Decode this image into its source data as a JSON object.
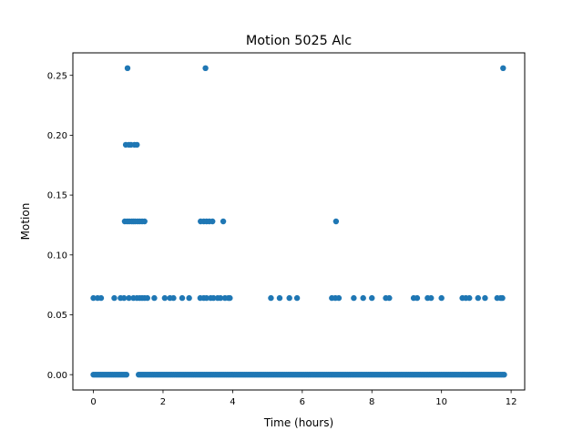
{
  "chart_data": {
    "type": "scatter",
    "title": "Motion 5025 Alc",
    "xlabel": "Time (hours)",
    "ylabel": "Motion",
    "xlim": [
      -0.59,
      12.39
    ],
    "ylim": [
      -0.0128,
      0.2688
    ],
    "xticks": [
      0,
      2,
      4,
      6,
      8,
      10,
      12
    ],
    "xtick_labels": [
      "0",
      "2",
      "4",
      "6",
      "8",
      "10",
      "12"
    ],
    "yticks": [
      0.0,
      0.05,
      0.1,
      0.15,
      0.2,
      0.25
    ],
    "ytick_labels": [
      "0.00",
      "0.05",
      "0.10",
      "0.15",
      "0.20",
      "0.25"
    ],
    "grid": false,
    "marker_color": "#1f77b4",
    "series": [
      {
        "points": [
          [
            0.98,
            0.256
          ],
          [
            3.22,
            0.256
          ],
          [
            11.77,
            0.256
          ],
          [
            0.93,
            0.192
          ],
          [
            1.02,
            0.192
          ],
          [
            1.08,
            0.192
          ],
          [
            1.18,
            0.192
          ],
          [
            1.25,
            0.192
          ],
          [
            0.9,
            0.128
          ],
          [
            0.97,
            0.128
          ],
          [
            1.03,
            0.128
          ],
          [
            1.1,
            0.128
          ],
          [
            1.15,
            0.128
          ],
          [
            1.2,
            0.128
          ],
          [
            1.27,
            0.128
          ],
          [
            1.33,
            0.128
          ],
          [
            1.4,
            0.128
          ],
          [
            1.47,
            0.128
          ],
          [
            3.08,
            0.128
          ],
          [
            3.17,
            0.128
          ],
          [
            3.25,
            0.128
          ],
          [
            3.33,
            0.128
          ],
          [
            3.42,
            0.128
          ],
          [
            3.73,
            0.128
          ],
          [
            6.97,
            0.128
          ],
          [
            0.0,
            0.064
          ],
          [
            0.12,
            0.064
          ],
          [
            0.22,
            0.064
          ],
          [
            0.6,
            0.064
          ],
          [
            0.78,
            0.064
          ],
          [
            0.88,
            0.064
          ],
          [
            1.02,
            0.064
          ],
          [
            1.15,
            0.064
          ],
          [
            1.25,
            0.064
          ],
          [
            1.33,
            0.064
          ],
          [
            1.4,
            0.064
          ],
          [
            1.47,
            0.064
          ],
          [
            1.55,
            0.064
          ],
          [
            1.75,
            0.064
          ],
          [
            2.05,
            0.064
          ],
          [
            2.2,
            0.064
          ],
          [
            2.3,
            0.064
          ],
          [
            2.55,
            0.064
          ],
          [
            2.75,
            0.064
          ],
          [
            3.07,
            0.064
          ],
          [
            3.17,
            0.064
          ],
          [
            3.25,
            0.064
          ],
          [
            3.37,
            0.064
          ],
          [
            3.45,
            0.064
          ],
          [
            3.57,
            0.064
          ],
          [
            3.65,
            0.064
          ],
          [
            3.78,
            0.064
          ],
          [
            3.88,
            0.064
          ],
          [
            3.92,
            0.064
          ],
          [
            5.1,
            0.064
          ],
          [
            5.35,
            0.064
          ],
          [
            5.63,
            0.064
          ],
          [
            5.85,
            0.064
          ],
          [
            6.85,
            0.064
          ],
          [
            6.95,
            0.064
          ],
          [
            7.05,
            0.064
          ],
          [
            7.48,
            0.064
          ],
          [
            7.75,
            0.064
          ],
          [
            8.0,
            0.064
          ],
          [
            8.4,
            0.064
          ],
          [
            8.5,
            0.064
          ],
          [
            9.2,
            0.064
          ],
          [
            9.3,
            0.064
          ],
          [
            9.6,
            0.064
          ],
          [
            9.7,
            0.064
          ],
          [
            10.0,
            0.064
          ],
          [
            10.6,
            0.064
          ],
          [
            10.7,
            0.064
          ],
          [
            10.8,
            0.064
          ],
          [
            11.05,
            0.064
          ],
          [
            11.25,
            0.064
          ],
          [
            11.6,
            0.064
          ],
          [
            11.7,
            0.064
          ],
          [
            11.75,
            0.064
          ]
        ],
        "baseline": {
          "y": 0.0,
          "from": 0.0,
          "to": 11.8,
          "step": 0.05,
          "gaps": [
            [
              0.95,
              1.28
            ]
          ]
        }
      }
    ]
  }
}
